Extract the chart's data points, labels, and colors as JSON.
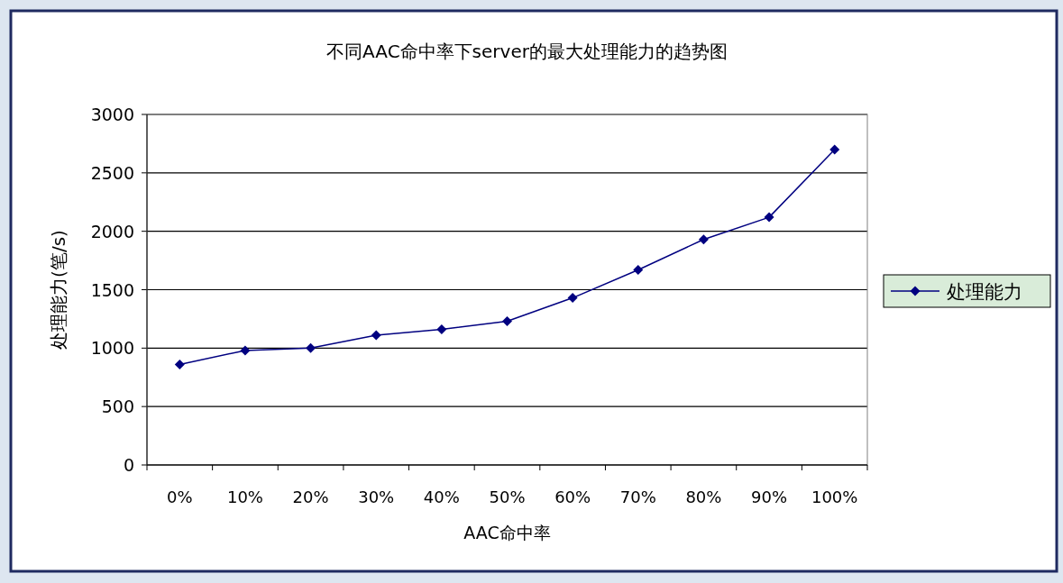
{
  "chart_data": {
    "type": "line",
    "title": "不同AAC命中率下server的最大处理能力的趋势图",
    "xlabel": "AAC命中率",
    "ylabel": "处理能力(笔/s)",
    "categories": [
      "0%",
      "10%",
      "20%",
      "30%",
      "40%",
      "50%",
      "60%",
      "70%",
      "80%",
      "90%",
      "100%"
    ],
    "series": [
      {
        "name": "处理能力",
        "color": "#000080",
        "values": [
          860,
          980,
          1000,
          1110,
          1160,
          1230,
          1430,
          1670,
          1930,
          2120,
          2700
        ]
      }
    ],
    "ylim": [
      0,
      3000
    ],
    "yticks": [
      0,
      500,
      1000,
      1500,
      2000,
      2500,
      3000
    ],
    "grid": "y",
    "legend": "right",
    "marker": "diamond",
    "line_style": "solid"
  }
}
